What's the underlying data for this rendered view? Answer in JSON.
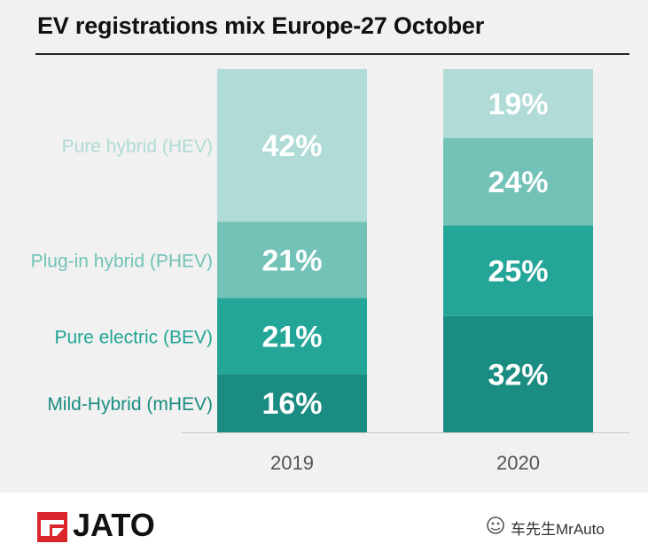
{
  "chart_data": {
    "type": "bar",
    "stacked": true,
    "percent": true,
    "title": "EV registrations mix Europe-27 October",
    "categories": [
      "2019",
      "2020"
    ],
    "series": [
      {
        "name": "Mild-Hybrid (mHEV)",
        "values": [
          16,
          32
        ],
        "color": "#1b8c81"
      },
      {
        "name": "Pure electric (BEV)",
        "values": [
          21,
          25
        ],
        "color": "#23a597"
      },
      {
        "name": "Plug-in hybrid (PHEV)",
        "values": [
          21,
          24
        ],
        "color": "#72c2b8"
      },
      {
        "name": "Pure hybrid (HEV)",
        "values": [
          42,
          19
        ],
        "color": "#b0dbd6"
      }
    ],
    "value_suffix": "%",
    "ylim": [
      0,
      100
    ],
    "xlabel": "",
    "ylabel": "",
    "legend": "left-of-first-bar"
  },
  "brand": {
    "logo_text": "JATO",
    "accent": "#d9252b"
  },
  "watermark": {
    "text": "车先生MrAuto"
  }
}
